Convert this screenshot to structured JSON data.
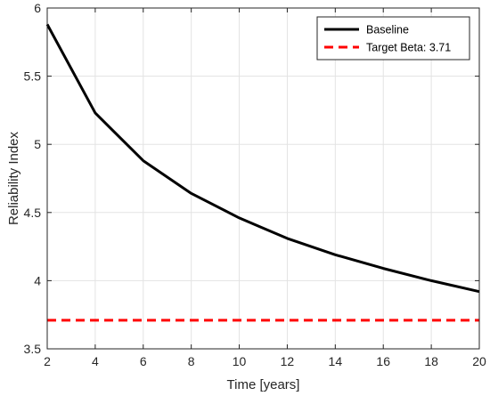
{
  "chart_data": {
    "type": "line",
    "title": "",
    "xlabel": "Time [years]",
    "ylabel": "Reliability Index",
    "xlim": [
      2,
      20
    ],
    "ylim": [
      3.5,
      6
    ],
    "x_ticks": [
      2,
      4,
      6,
      8,
      10,
      12,
      14,
      16,
      18,
      20
    ],
    "y_ticks": [
      3.5,
      4,
      4.5,
      5,
      5.5,
      6
    ],
    "grid": true,
    "legend_position": "top-right",
    "series": [
      {
        "name": "Baseline",
        "color": "#000000",
        "line_style": "solid",
        "x": [
          2,
          4,
          6,
          8,
          10,
          12,
          14,
          16,
          18,
          20
        ],
        "y": [
          5.88,
          5.23,
          4.88,
          4.64,
          4.46,
          4.31,
          4.19,
          4.09,
          4.0,
          3.92
        ]
      },
      {
        "name": "Target Beta: 3.71",
        "color": "#ff0000",
        "line_style": "dashed",
        "x": [
          2,
          20
        ],
        "y": [
          3.71,
          3.71
        ]
      }
    ]
  }
}
